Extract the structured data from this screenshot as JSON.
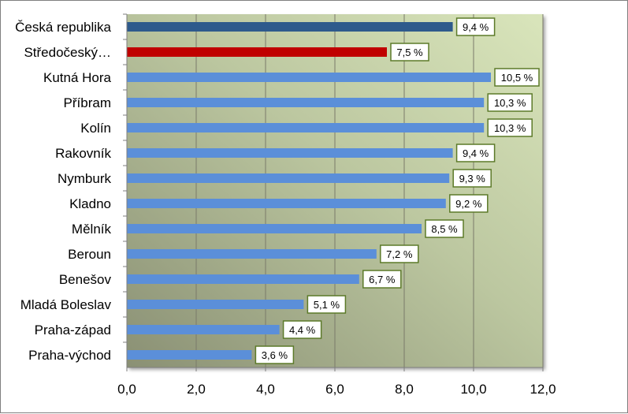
{
  "chart_data": {
    "type": "bar",
    "orientation": "horizontal",
    "categories": [
      "Česká republika",
      "Středočeský…",
      "Kutná Hora",
      "Příbram",
      "Kolín",
      "Rakovník",
      "Nymburk",
      "Kladno",
      "Mělník",
      "Beroun",
      "Benešov",
      "Mladá Boleslav",
      "Praha-západ",
      "Praha-východ"
    ],
    "values": [
      9.4,
      7.5,
      10.5,
      10.3,
      10.3,
      9.4,
      9.3,
      9.2,
      8.5,
      7.2,
      6.7,
      5.1,
      4.4,
      3.6
    ],
    "data_labels": [
      "9,4 %",
      "7,5 %",
      "10,5 %",
      "10,3 %",
      "10,3 %",
      "9,4 %",
      "9,3 %",
      "9,2 %",
      "8,5 %",
      "7,2 %",
      "6,7 %",
      "5,1 %",
      "4,4 %",
      "3,6 %"
    ],
    "bar_colors": [
      "#2e5a8c",
      "#c00000",
      "#5b8fd9",
      "#5b8fd9",
      "#5b8fd9",
      "#5b8fd9",
      "#5b8fd9",
      "#5b8fd9",
      "#5b8fd9",
      "#5b8fd9",
      "#5b8fd9",
      "#5b8fd9",
      "#5b8fd9",
      "#5b8fd9"
    ],
    "xlim": [
      0,
      12
    ],
    "x_ticks": [
      0,
      2,
      4,
      6,
      8,
      10,
      12
    ],
    "x_tick_labels": [
      "0,0",
      "2,0",
      "4,0",
      "6,0",
      "8,0",
      "10,0",
      "12,0"
    ],
    "title": "",
    "xlabel": "",
    "ylabel": "",
    "grid": "vertical",
    "legend": "none",
    "colors": {
      "plot_bg_light": "#d7e3b8",
      "plot_bg_dark": "#8e9478",
      "label_border": "#5c7a29",
      "label_bg": "#ffffff"
    }
  }
}
